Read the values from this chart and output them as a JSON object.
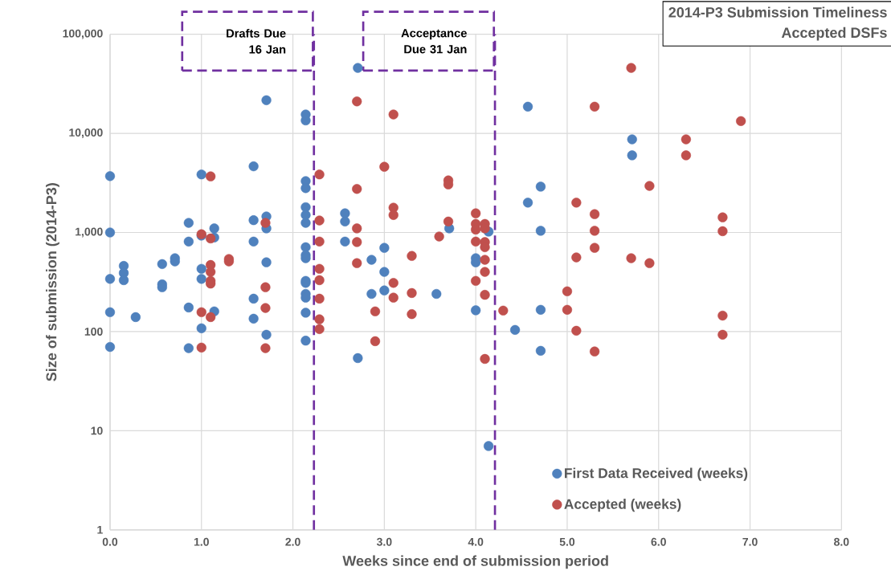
{
  "chart_data": {
    "type": "scatter",
    "title": "2014-P3 Submission Timeliness",
    "subtitle": "Accepted DSFs",
    "xlabel": "Weeks since end of submission period",
    "ylabel": "Size of submission (2014-P3)",
    "xlim": [
      0,
      8
    ],
    "ylim": [
      1,
      100000
    ],
    "log": "y",
    "grid": true,
    "legend": "bottom right",
    "marker": "circle",
    "xticks": [
      {
        "value": 0,
        "label": "0.0"
      },
      {
        "value": 1,
        "label": "1.0"
      },
      {
        "value": 2,
        "label": "2.0"
      },
      {
        "value": 3,
        "label": "3.0"
      },
      {
        "value": 4,
        "label": "4.0"
      },
      {
        "value": 5,
        "label": "5.0"
      },
      {
        "value": 6,
        "label": "6.0"
      },
      {
        "value": 7,
        "label": "7.0"
      },
      {
        "value": 8,
        "label": "8.0"
      }
    ],
    "yticks": [
      1,
      10,
      100,
      {
        "value": 1000,
        "label": "1,000"
      },
      {
        "value": 10000,
        "label": "10,000"
      },
      {
        "value": 100000,
        "label": "100,000"
      }
    ],
    "ref_lines": [
      {
        "axis": "x",
        "value": 2.23,
        "label": "Drafts Due 16 Jan",
        "color": "#7030a0",
        "line_style": "dashed"
      },
      {
        "axis": "x",
        "value": 4.21,
        "label": "Acceptance Due 31 Jan",
        "color": "#7030a0",
        "line_style": "dashed"
      }
    ],
    "series": [
      {
        "name": "First Data Received (weeks)",
        "color": "#4f81bd",
        "x": [
          0,
          0,
          0,
          0,
          0,
          0.15,
          0.15,
          0.15,
          0.28,
          0.57,
          0.57,
          0.57,
          0.71,
          0.71,
          0.86,
          0.86,
          0.86,
          0.86,
          1.0,
          1.0,
          1.0,
          1.0,
          1.0,
          1.14,
          1.14,
          1.14,
          1.57,
          1.57,
          1.57,
          1.57,
          1.57,
          1.71,
          1.71,
          1.71,
          1.71,
          1.71,
          2.14,
          2.14,
          2.14,
          2.14,
          2.14,
          2.14,
          2.14,
          2.14,
          2.14,
          2.14,
          2.14,
          2.14,
          2.14,
          2.14,
          2.14,
          2.14,
          2.71,
          2.57,
          2.57,
          2.57,
          3.0,
          2.86,
          3.0,
          3.0,
          2.86,
          2.71,
          3.57,
          3.71,
          4.0,
          4.0,
          4.0,
          4.14,
          4.57,
          4.57,
          4.71,
          4.71,
          4.71,
          4.71,
          4.43,
          4.14,
          5.71,
          5.71
        ],
        "values": [
          3700,
          1000,
          340,
          157,
          70,
          460,
          390,
          330,
          140,
          480,
          300,
          280,
          550,
          510,
          1250,
          810,
          175,
          68,
          3850,
          930,
          430,
          340,
          108,
          1100,
          890,
          160,
          4650,
          1330,
          810,
          215,
          135,
          21600,
          1450,
          1100,
          500,
          93,
          15500,
          13500,
          3300,
          2800,
          1800,
          1500,
          1250,
          710,
          590,
          550,
          325,
          310,
          240,
          220,
          155,
          81,
          45700,
          1560,
          1290,
          810,
          700,
          530,
          400,
          260,
          240,
          54,
          240,
          1100,
          550,
          500,
          164,
          1020,
          18600,
          2000,
          2900,
          1040,
          166,
          64,
          104,
          7,
          8700,
          6000
        ]
      },
      {
        "name": "Accepted (weeks)",
        "color": "#c0504d",
        "x": [
          1.1,
          1.0,
          1.1,
          1.1,
          1.1,
          1.1,
          1.1,
          1.0,
          1.1,
          1.0,
          1.3,
          1.3,
          1.7,
          1.7,
          1.7,
          1.7,
          2.29,
          2.29,
          2.29,
          2.29,
          2.29,
          2.29,
          2.29,
          2.29,
          2.7,
          3.1,
          3.0,
          2.7,
          3.1,
          3.1,
          3.7,
          3.7,
          3.7,
          2.7,
          2.7,
          2.7,
          3.6,
          3.3,
          3.1,
          3.1,
          3.3,
          3.3,
          2.9,
          2.9,
          4.0,
          4.0,
          4.0,
          4.0,
          4.0,
          4.1,
          4.1,
          4.1,
          4.1,
          4.1,
          4.1,
          4.1,
          4.1,
          4.3,
          5.7,
          5.3,
          6.9,
          6.3,
          6.3,
          5.9,
          5.1,
          5.3,
          5.3,
          5.3,
          5.1,
          5.7,
          5.9,
          5.0,
          5.0,
          5.1,
          5.3,
          6.7,
          6.7,
          6.7,
          6.7
        ],
        "values": [
          3680,
          960,
          870,
          470,
          400,
          325,
          305,
          157,
          140,
          69,
          540,
          510,
          1250,
          280,
          173,
          68,
          3850,
          1320,
          810,
          430,
          330,
          215,
          133,
          106,
          21000,
          15500,
          4600,
          2750,
          1780,
          1500,
          3350,
          3050,
          1290,
          1100,
          800,
          490,
          910,
          580,
          310,
          220,
          245,
          150,
          160,
          80,
          1560,
          1220,
          1070,
          810,
          325,
          1220,
          1100,
          800,
          710,
          530,
          400,
          235,
          53,
          163,
          45700,
          18600,
          13300,
          8700,
          6000,
          2950,
          2000,
          1530,
          1040,
          700,
          560,
          550,
          490,
          255,
          166,
          102,
          63,
          1420,
          1030,
          145,
          93
        ]
      }
    ]
  }
}
